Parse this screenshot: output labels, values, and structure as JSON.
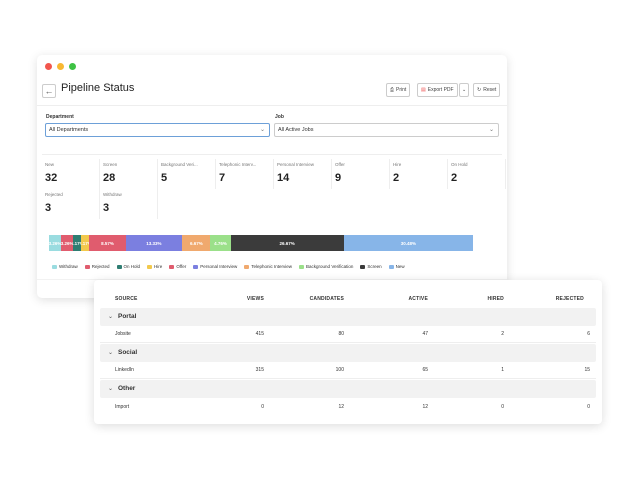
{
  "window": {
    "dot_colors": [
      "#f2564d",
      "#f8b832",
      "#3ec244"
    ],
    "title": "Pipeline Status",
    "toolbar": {
      "print": "Print",
      "export": "Export PDF",
      "reset": "Reset"
    }
  },
  "filters": {
    "department_label": "Department",
    "department_value": "All Departments",
    "job_label": "Job",
    "job_value": "All Active Jobs"
  },
  "stats": [
    {
      "label": "New",
      "value": "32"
    },
    {
      "label": "Screen",
      "value": "28"
    },
    {
      "label": "Background Veri...",
      "value": "5"
    },
    {
      "label": "Telephonic Interv...",
      "value": "7"
    },
    {
      "label": "Personal Interview",
      "value": "14"
    },
    {
      "label": "Offer",
      "value": "9"
    },
    {
      "label": "Hire",
      "value": "2"
    },
    {
      "label": "On Hold",
      "value": "2"
    },
    {
      "label": "Rejected",
      "value": "3"
    },
    {
      "label": "Withdraw",
      "value": "3"
    }
  ],
  "chart_data": {
    "type": "bar",
    "orientation": "horizontal-stacked",
    "series": [
      {
        "name": "Withdraw",
        "value": 3,
        "label": "3.26%",
        "color": "#9adce0"
      },
      {
        "name": "Rejected",
        "value": 3,
        "label": "3.26%",
        "color": "#e05c6e"
      },
      {
        "name": "On Hold",
        "value": 2,
        "label": "2.17%",
        "color": "#2e7d72"
      },
      {
        "name": "Hire",
        "value": 2,
        "label": "2.17%",
        "color": "#f2c94c"
      },
      {
        "name": "Offer",
        "value": 9,
        "label": "8.57%",
        "color": "#e05c6e"
      },
      {
        "name": "Personal Interview",
        "value": 14,
        "label": "13.33%",
        "color": "#7b7fe0"
      },
      {
        "name": "Telephonic Interview",
        "value": 7,
        "label": "6.67%",
        "color": "#f0a96e"
      },
      {
        "name": "Background Verification",
        "value": 5,
        "label": "4.76%",
        "color": "#9be08a"
      },
      {
        "name": "Screen",
        "value": 28,
        "label": "26.67%",
        "color": "#3b3b3b"
      },
      {
        "name": "New",
        "value": 32,
        "label": "30.48%",
        "color": "#87b5e8"
      }
    ],
    "legend_placement": "bottom"
  },
  "table": {
    "headers": [
      "SOURCE",
      "VIEWS",
      "CANDIDATES",
      "ACTIVE",
      "HIRED",
      "REJECTED"
    ],
    "groups": [
      {
        "name": "Portal",
        "rows": [
          {
            "source": "Jobsite",
            "views": "415",
            "candidates": "80",
            "active": "47",
            "hired": "2",
            "rejected": "6"
          }
        ]
      },
      {
        "name": "Social",
        "rows": [
          {
            "source": "LinkedIn",
            "views": "315",
            "candidates": "100",
            "active": "65",
            "hired": "1",
            "rejected": "15"
          }
        ]
      },
      {
        "name": "Other",
        "rows": [
          {
            "source": "Import",
            "views": "0",
            "candidates": "12",
            "active": "12",
            "hired": "0",
            "rejected": "0"
          }
        ]
      }
    ]
  }
}
